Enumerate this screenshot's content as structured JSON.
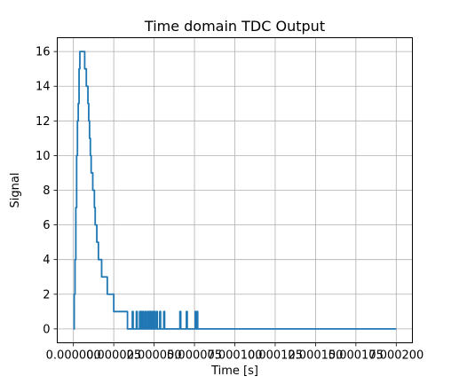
{
  "chart_data": {
    "type": "line",
    "title": "Time domain TDC Output",
    "xlabel": "Time [s]",
    "ylabel": "Signal",
    "xlim": [
      -1e-05,
      0.00021
    ],
    "ylim": [
      -0.8,
      16.8
    ],
    "grid": true,
    "step": true,
    "x_ticks": [
      {
        "value": 0.0,
        "label": "0.000000"
      },
      {
        "value": 2.5e-05,
        "label": "0.000025"
      },
      {
        "value": 5e-05,
        "label": "0.000050"
      },
      {
        "value": 7.5e-05,
        "label": "0.000075"
      },
      {
        "value": 0.0001,
        "label": "0.000100"
      },
      {
        "value": 0.000125,
        "label": "0.000125"
      },
      {
        "value": 0.00015,
        "label": "0.000150"
      },
      {
        "value": 0.000175,
        "label": "0.000175"
      },
      {
        "value": 0.0002,
        "label": "0.000200"
      }
    ],
    "y_ticks": [
      {
        "value": 0,
        "label": "0"
      },
      {
        "value": 2,
        "label": "2"
      },
      {
        "value": 4,
        "label": "4"
      },
      {
        "value": 6,
        "label": "6"
      },
      {
        "value": 8,
        "label": "8"
      },
      {
        "value": 10,
        "label": "10"
      },
      {
        "value": 12,
        "label": "12"
      },
      {
        "value": 14,
        "label": "14"
      },
      {
        "value": 16,
        "label": "16"
      }
    ],
    "series": [
      {
        "color": "#1f77b4",
        "x": [
          0.0,
          5e-07,
          1e-06,
          1.5e-06,
          2e-06,
          2.5e-06,
          3e-06,
          3.5e-06,
          4e-06,
          4.5e-06,
          7e-06,
          7.5e-06,
          8e-06,
          8.5e-06,
          9e-06,
          9.5e-06,
          1e-05,
          1.05e-05,
          1.1e-05,
          1.15e-05,
          1.2e-05,
          1.25e-05,
          1.3e-05,
          1.35e-05,
          1.4e-05,
          1.45e-05,
          1.55e-05,
          1.6e-05,
          1.75e-05,
          1.85e-05,
          2.1e-05,
          2.5e-05,
          3.35e-05,
          3.65e-05,
          3.7e-05,
          3.9e-05,
          3.95e-05,
          4.1e-05,
          4.15e-05,
          4.2e-05,
          4.25e-05,
          4.3e-05,
          4.35e-05,
          4.45e-05,
          4.5e-05,
          4.6e-05,
          4.65e-05,
          4.7e-05,
          4.75e-05,
          4.8e-05,
          4.85e-05,
          4.9e-05,
          4.95e-05,
          5e-05,
          5.05e-05,
          5.15e-05,
          5.2e-05,
          5.35e-05,
          5.4e-05,
          5.6e-05,
          5.65e-05,
          6.6e-05,
          6.65e-05,
          7e-05,
          7.05e-05,
          7.55e-05,
          7.6e-05,
          7.65e-05,
          7.7e-05,
          7.8e-05,
          0.0002
        ],
        "y": [
          0,
          2,
          4,
          7,
          10,
          12,
          13,
          15,
          16,
          16,
          15,
          15,
          14,
          14,
          13,
          12,
          11,
          10,
          9,
          9,
          8,
          8,
          7,
          6,
          6,
          5,
          4,
          4,
          3,
          3,
          2,
          1,
          0,
          1,
          0,
          1,
          0,
          1,
          0,
          1,
          0,
          1,
          0,
          1,
          0,
          1,
          0,
          1,
          0,
          1,
          0,
          1,
          0,
          1,
          0,
          1,
          0,
          1,
          0,
          1,
          0,
          1,
          0,
          1,
          0,
          1,
          0,
          1,
          0,
          0,
          0
        ]
      }
    ]
  }
}
